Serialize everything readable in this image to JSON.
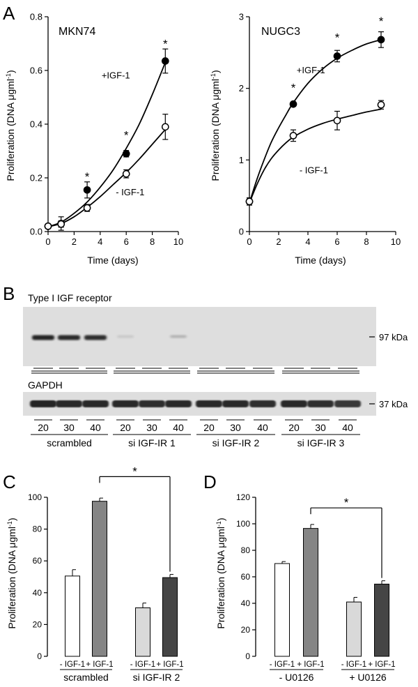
{
  "panel_labels": {
    "a": "A",
    "b": "B",
    "c": "C",
    "d": "D"
  },
  "chart_data": [
    {
      "id": "A1",
      "type": "line",
      "title": "MKN74",
      "xlabel": "Time (days)",
      "ylabel_main": "Proliferation (DNA μgml",
      "ylabel_sup": "-1",
      "ylabel_end": ")",
      "xlim": [
        0,
        10
      ],
      "ylim": [
        0,
        0.8
      ],
      "xticks": [
        "0",
        "2",
        "4",
        "6",
        "8",
        "10"
      ],
      "yticks": [
        "0.0",
        "0.2",
        "0.4",
        "0.6",
        "0.8"
      ],
      "series": [
        {
          "name": "+IGF-1",
          "marker": "filled",
          "x": [
            0,
            1,
            3,
            6,
            9
          ],
          "y": [
            0.02,
            0.03,
            0.155,
            0.29,
            0.635
          ],
          "err": [
            0.005,
            0.025,
            0.03,
            0.012,
            0.045
          ],
          "curve_x": [
            0,
            1,
            2,
            3,
            4,
            5,
            6,
            7,
            8,
            9
          ],
          "curve_y": [
            0.018,
            0.035,
            0.068,
            0.11,
            0.165,
            0.23,
            0.31,
            0.4,
            0.51,
            0.63
          ]
        },
        {
          "name": "- IGF-1",
          "marker": "open",
          "x": [
            0,
            1,
            3,
            6,
            9
          ],
          "y": [
            0.02,
            0.028,
            0.088,
            0.215,
            0.39
          ],
          "err": [
            0.005,
            0.012,
            0.013,
            0.015,
            0.047
          ],
          "curve_x": [
            0,
            1,
            2,
            3,
            4,
            5,
            6,
            7,
            8,
            9
          ],
          "curve_y": [
            0.018,
            0.03,
            0.055,
            0.09,
            0.13,
            0.175,
            0.22,
            0.27,
            0.325,
            0.38
          ]
        }
      ],
      "significance": [
        {
          "x": 3,
          "y": 0.215,
          "text": "*"
        },
        {
          "x": 6,
          "y": 0.37,
          "text": "*"
        },
        {
          "x": 9,
          "y": 0.71,
          "text": "*"
        }
      ],
      "series_labels": [
        {
          "text": "+IGF-1",
          "x": 5.2,
          "y": 0.58
        },
        {
          "text": "- IGF-1",
          "x": 6.3,
          "y": 0.145
        }
      ]
    },
    {
      "id": "A2",
      "type": "line",
      "title": "NUGC3",
      "xlabel": "Time (days)",
      "ylabel_main": "Proliferation (DNA μgml",
      "ylabel_sup": "-1",
      "ylabel_end": ")",
      "xlim": [
        0,
        10
      ],
      "ylim": [
        0,
        3
      ],
      "xticks": [
        "0",
        "2",
        "4",
        "6",
        "8",
        "10"
      ],
      "yticks": [
        "0",
        "1",
        "2",
        "3"
      ],
      "series": [
        {
          "name": "+IGF-1",
          "marker": "filled",
          "x": [
            0,
            3,
            6,
            9
          ],
          "y": [
            0.42,
            1.78,
            2.45,
            2.68
          ],
          "err": [
            0.05,
            0.03,
            0.08,
            0.11
          ],
          "curve_x": [
            0,
            0.5,
            1,
            1.5,
            2,
            2.5,
            3,
            4,
            5,
            6,
            7,
            8,
            9
          ],
          "curve_y": [
            0.4,
            0.72,
            1.0,
            1.25,
            1.45,
            1.63,
            1.8,
            2.07,
            2.27,
            2.42,
            2.53,
            2.62,
            2.68
          ]
        },
        {
          "name": "- IGF-1",
          "marker": "open",
          "x": [
            0,
            3,
            6,
            9
          ],
          "y": [
            0.42,
            1.34,
            1.55,
            1.77
          ],
          "err": [
            0.05,
            0.08,
            0.13,
            0.06
          ],
          "curve_x": [
            0,
            0.5,
            1,
            1.5,
            2,
            2.5,
            3,
            4,
            5,
            6,
            7,
            8,
            9
          ],
          "curve_y": [
            0.4,
            0.65,
            0.86,
            1.02,
            1.14,
            1.24,
            1.32,
            1.43,
            1.51,
            1.57,
            1.62,
            1.67,
            1.71
          ]
        }
      ],
      "significance": [
        {
          "x": 3,
          "y": 2.05,
          "text": "*"
        },
        {
          "x": 6,
          "y": 2.75,
          "text": "*"
        },
        {
          "x": 9,
          "y": 2.98,
          "text": "*"
        }
      ],
      "series_labels": [
        {
          "text": "+IGF-1",
          "x": 4.2,
          "y": 2.25
        },
        {
          "text": "- IGF-1",
          "x": 4.4,
          "y": 0.85
        }
      ]
    },
    {
      "id": "C",
      "type": "bar",
      "ylabel_main": "Proliferation (DNA μgml",
      "ylabel_sup": "-1",
      "ylabel_end": ")",
      "ylim": [
        0,
        100
      ],
      "yticks": [
        "0",
        "20",
        "40",
        "60",
        "80",
        "100"
      ],
      "bar_labels": [
        "- IGF-1",
        "+ IGF-1",
        "- IGF-1",
        "+ IGF-1"
      ],
      "values": [
        50.5,
        97.5,
        30.5,
        49.5
      ],
      "errors": [
        4,
        2,
        3,
        2
      ],
      "colors": [
        "#ffffff",
        "#858585",
        "#d9d9d9",
        "#454545"
      ],
      "groups": [
        {
          "label": "scrambled",
          "bars": [
            0,
            1
          ]
        },
        {
          "label": "si IGF-IR 2",
          "bars": [
            2,
            3
          ]
        }
      ],
      "bracket": {
        "from": 1,
        "to": 3,
        "text": "*",
        "y": 113
      }
    },
    {
      "id": "D",
      "type": "bar",
      "ylabel_main": "Proliferation (DNA μgml",
      "ylabel_sup": "-1",
      "ylabel_end": ")",
      "ylim": [
        0,
        120
      ],
      "yticks": [
        "0",
        "20",
        "40",
        "60",
        "80",
        "100",
        "120"
      ],
      "bar_labels": [
        "- IGF-1",
        "+ IGF-1",
        "- IGF-1",
        "+ IGF-1"
      ],
      "values": [
        70,
        96.5,
        41,
        54.5
      ],
      "errors": [
        1.5,
        3,
        3.5,
        2.5
      ],
      "colors": [
        "#ffffff",
        "#858585",
        "#d9d9d9",
        "#454545"
      ],
      "groups": [
        {
          "label": "- U0126",
          "bars": [
            0,
            1
          ]
        },
        {
          "label": "+ U0126",
          "bars": [
            2,
            3
          ]
        }
      ],
      "bracket": {
        "from": 1,
        "to": 3,
        "text": "*",
        "y": 112
      }
    }
  ],
  "blot": {
    "title": "Type I IGF receptor",
    "loading_title": "GAPDH",
    "marker_97": "97 kDa",
    "marker_37": "37 kDa",
    "lanes": [
      "20",
      "30",
      "40",
      "20",
      "30",
      "40",
      "20",
      "30",
      "40",
      "20",
      "30",
      "40"
    ],
    "groups": [
      "scrambled",
      "si IGF-IR 1",
      "si IGF-IR 2",
      "si IGF-IR 3"
    ],
    "igf_band_intensity": [
      0.95,
      0.92,
      0.9,
      0.1,
      0.0,
      0.22,
      0.0,
      0.0,
      0.0,
      0.0,
      0.0,
      0.0
    ],
    "gapdh_band_intensity": [
      0.95,
      0.93,
      0.93,
      0.93,
      0.9,
      0.93,
      0.93,
      0.93,
      0.9,
      0.93,
      0.9,
      0.85
    ],
    "band_color": "#1a1a1a",
    "background_color": "#dedede"
  }
}
